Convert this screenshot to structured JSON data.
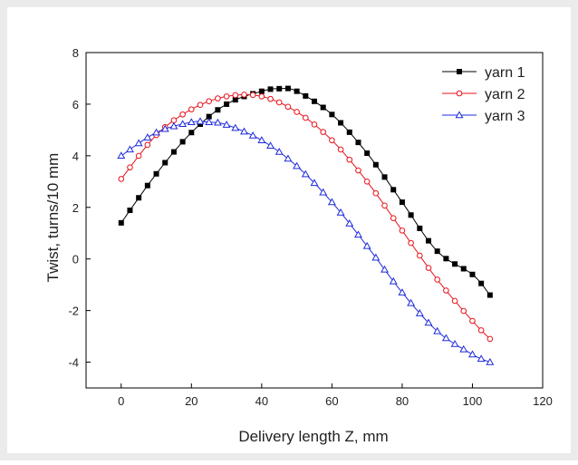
{
  "chart_data": {
    "type": "line",
    "xlabel": "Delivery length Z, mm",
    "ylabel": "Twist, turns/10 mm",
    "xlim": [
      -10,
      120
    ],
    "ylim": [
      -5,
      8
    ],
    "xticks": [
      "0",
      "20",
      "40",
      "60",
      "80",
      "100",
      "120"
    ],
    "yticks": [
      "-4",
      "-2",
      "0",
      "2",
      "4",
      "6",
      "8"
    ],
    "grid": false,
    "legend_position": "top-right",
    "frame_color": "#ebebeb",
    "series": [
      {
        "name": "yarn 1",
        "color": "#000000",
        "marker": "filled-square",
        "x": [
          0,
          10,
          20,
          30,
          40,
          45,
          50,
          60,
          70,
          80,
          90,
          100,
          105
        ],
        "y": [
          1.4,
          3.3,
          4.9,
          6.0,
          6.5,
          6.6,
          6.5,
          5.6,
          4.1,
          2.2,
          0.3,
          -0.6,
          -1.4
        ]
      },
      {
        "name": "yarn 2",
        "color": "#e8121a",
        "marker": "open-circle",
        "x": [
          0,
          10,
          20,
          30,
          40,
          50,
          60,
          70,
          80,
          90,
          100,
          105
        ],
        "y": [
          3.1,
          4.8,
          5.8,
          6.3,
          6.3,
          5.7,
          4.6,
          3.0,
          1.1,
          -0.8,
          -2.4,
          -3.1
        ]
      },
      {
        "name": "yarn 3",
        "color": "#1f2bdc",
        "marker": "open-triangle",
        "x": [
          0,
          10,
          20,
          25,
          30,
          40,
          50,
          60,
          70,
          80,
          90,
          100,
          105
        ],
        "y": [
          4.0,
          4.9,
          5.3,
          5.3,
          5.2,
          4.6,
          3.6,
          2.2,
          0.5,
          -1.3,
          -2.8,
          -3.7,
          -4.0
        ]
      }
    ]
  }
}
